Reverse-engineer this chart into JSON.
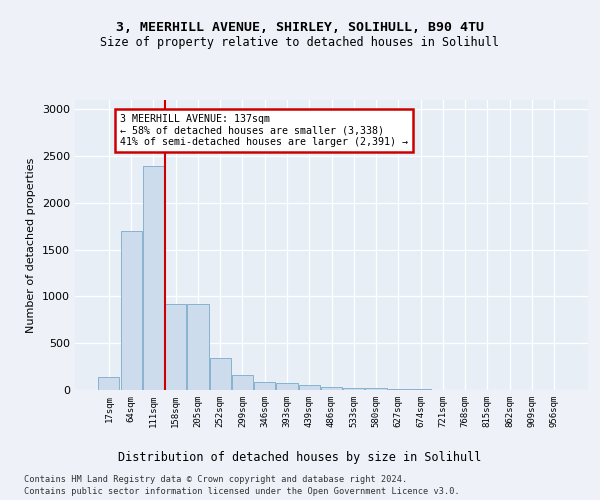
{
  "title1": "3, MEERHILL AVENUE, SHIRLEY, SOLIHULL, B90 4TU",
  "title2": "Size of property relative to detached houses in Solihull",
  "xlabel": "Distribution of detached houses by size in Solihull",
  "ylabel": "Number of detached properties",
  "bar_color": "#ccdcec",
  "bar_edge_color": "#7aaac8",
  "vline_color": "#cc0000",
  "annotation_text": "3 MEERHILL AVENUE: 137sqm\n← 58% of detached houses are smaller (3,338)\n41% of semi-detached houses are larger (2,391) →",
  "annotation_box_color": "#ffffff",
  "annotation_box_edge": "#cc0000",
  "categories": [
    "17sqm",
    "64sqm",
    "111sqm",
    "158sqm",
    "205sqm",
    "252sqm",
    "299sqm",
    "346sqm",
    "393sqm",
    "439sqm",
    "486sqm",
    "533sqm",
    "580sqm",
    "627sqm",
    "674sqm",
    "721sqm",
    "768sqm",
    "815sqm",
    "862sqm",
    "909sqm",
    "956sqm"
  ],
  "values": [
    140,
    1700,
    2390,
    920,
    920,
    340,
    160,
    90,
    75,
    50,
    30,
    22,
    18,
    10,
    7,
    5,
    4,
    3,
    2,
    2,
    2
  ],
  "ylim": [
    0,
    3100
  ],
  "yticks": [
    0,
    500,
    1000,
    1500,
    2000,
    2500,
    3000
  ],
  "bg_color": "#eef2f8",
  "plot_bg_color": "#e8eef6",
  "grid_color": "#ffffff",
  "footer1": "Contains HM Land Registry data © Crown copyright and database right 2024.",
  "footer2": "Contains public sector information licensed under the Open Government Licence v3.0."
}
